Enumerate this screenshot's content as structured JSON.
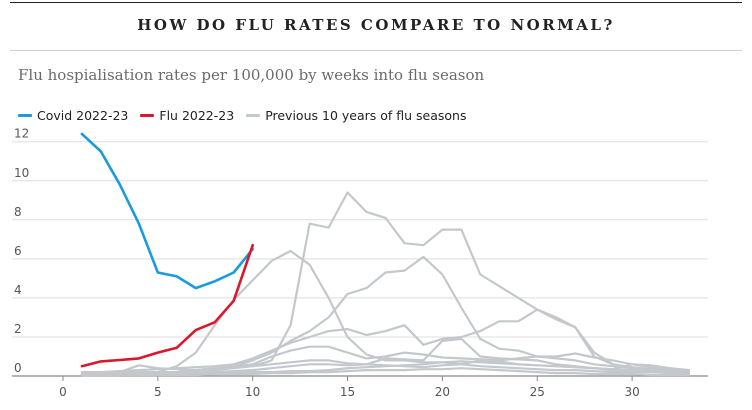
{
  "header": {
    "title": "HOW DO FLU RATES COMPARE TO NORMAL?",
    "subtitle": "Flu hospialisation rates per 100,000 by weeks into flu season"
  },
  "colors": {
    "covid": "#1a9be0",
    "flu": "#d9182d",
    "previous": "#c4c8cc",
    "grid": "#dddddd",
    "axis": "#888888"
  },
  "chart_data": {
    "type": "line",
    "title": "HOW DO FLU RATES COMPARE TO NORMAL?",
    "subtitle": "Flu hospialisation rates per 100,000 by weeks into flu season",
    "xlabel": "",
    "ylabel": "",
    "xlim": [
      -1,
      34
    ],
    "ylim": [
      0,
      12.6
    ],
    "xticks": [
      0,
      5,
      10,
      15,
      20,
      25,
      30
    ],
    "yticks": [
      0,
      2,
      4,
      6,
      8,
      10,
      12
    ],
    "grid": true,
    "legend_position": "top-left",
    "legend": [
      {
        "label": "Covid 2022-23",
        "series": "covid"
      },
      {
        "label": "Flu 2022-23",
        "series": "flu"
      },
      {
        "label": "Previous 10 years of flu seasons",
        "series": "previous"
      }
    ],
    "series": [
      {
        "name": "Covid 2022-23",
        "key": "covid",
        "x": [
          1,
          2,
          3,
          4,
          5,
          6,
          7,
          8,
          9,
          10
        ],
        "y": [
          12.4,
          11.5,
          9.8,
          7.8,
          5.3,
          5.1,
          4.5,
          4.85,
          5.3,
          6.5
        ]
      },
      {
        "name": "Flu 2022-23",
        "key": "flu",
        "x": [
          1,
          2,
          3,
          4,
          5,
          6,
          7,
          8,
          9,
          10
        ],
        "y": [
          0.5,
          0.75,
          0.82,
          0.9,
          1.2,
          1.45,
          2.35,
          2.75,
          3.85,
          6.7
        ]
      },
      {
        "name": "Previous 10 years of flu seasons",
        "key": "previous",
        "x": [
          1,
          2,
          3,
          4,
          5,
          6,
          7,
          8,
          9,
          10,
          11,
          12,
          13,
          14,
          15,
          16,
          17,
          18,
          19,
          20,
          21,
          22,
          23,
          24,
          25,
          26,
          27,
          28,
          29,
          30,
          31,
          32,
          33
        ],
        "y": [
          0.2,
          0.2,
          0.2,
          0.2,
          0.2,
          0.2,
          0.25,
          0.3,
          0.4,
          0.5,
          0.8,
          2.6,
          7.8,
          7.6,
          9.4,
          8.4,
          8.1,
          6.8,
          6.7,
          7.5,
          7.5,
          5.2,
          4.6,
          4.0,
          3.4,
          3.0,
          2.5,
          1.2,
          0.6,
          0.4,
          0.3,
          0.25,
          0.2
        ]
      },
      {
        "name": "Previous 10 years of flu seasons",
        "key": "previous",
        "x": [
          1,
          2,
          3,
          4,
          5,
          6,
          7,
          8,
          9,
          10,
          11,
          12,
          13,
          14,
          15,
          16,
          17,
          18,
          19,
          20,
          21,
          22,
          23,
          24,
          25,
          26,
          27,
          28,
          29,
          30,
          31,
          32,
          33
        ],
        "y": [
          0.1,
          0.1,
          0.1,
          0.15,
          0.2,
          0.5,
          1.2,
          2.6,
          3.9,
          4.9,
          5.9,
          6.4,
          5.7,
          4.0,
          2.0,
          1.1,
          0.8,
          0.8,
          0.7,
          0.7,
          0.6,
          0.5,
          0.45,
          0.4,
          0.35,
          0.3,
          0.3,
          0.25,
          0.2,
          0.2,
          0.2,
          0.15,
          0.15
        ]
      },
      {
        "name": "Previous 10 years of flu seasons",
        "key": "previous",
        "x": [
          1,
          2,
          3,
          4,
          5,
          6,
          7,
          8,
          9,
          10,
          11,
          12,
          13,
          14,
          15,
          16,
          17,
          18,
          19,
          20,
          21,
          22,
          23,
          24,
          25,
          26,
          27,
          28,
          29,
          30,
          31,
          32,
          33
        ],
        "y": [
          0.1,
          0.1,
          0.1,
          0.1,
          0.15,
          0.2,
          0.3,
          0.4,
          0.5,
          0.8,
          1.2,
          1.8,
          2.3,
          3.0,
          4.2,
          4.5,
          5.3,
          5.4,
          6.1,
          5.2,
          3.5,
          1.9,
          1.4,
          1.3,
          1.0,
          0.9,
          0.8,
          0.6,
          0.5,
          0.4,
          0.35,
          0.3,
          0.25
        ]
      },
      {
        "name": "Previous 10 years of flu seasons",
        "key": "previous",
        "x": [
          1,
          2,
          3,
          4,
          5,
          6,
          7,
          8,
          9,
          10,
          11,
          12,
          13,
          14,
          15,
          16,
          17,
          18,
          19,
          20,
          21,
          22,
          23,
          24,
          25,
          26,
          27,
          28,
          29,
          30,
          31,
          32,
          33
        ],
        "y": [
          0.2,
          0.2,
          0.25,
          0.3,
          0.35,
          0.4,
          0.45,
          0.5,
          0.6,
          0.9,
          1.3,
          1.7,
          2.0,
          2.3,
          2.4,
          2.1,
          2.3,
          2.6,
          1.6,
          1.9,
          2.0,
          2.3,
          2.8,
          2.8,
          3.4,
          2.9,
          2.5,
          1.0,
          0.6,
          0.45,
          0.35,
          0.3,
          0.25
        ]
      },
      {
        "name": "Previous 10 years of flu seasons",
        "key": "previous",
        "x": [
          1,
          2,
          3,
          4,
          5,
          6,
          7,
          8,
          9,
          10,
          11,
          12,
          13,
          14,
          15,
          16,
          17,
          18,
          19,
          20,
          21,
          22,
          23,
          24,
          25,
          26,
          27,
          28,
          29,
          30,
          31,
          32,
          33
        ],
        "y": [
          0.15,
          0.15,
          0.2,
          0.55,
          0.4,
          0.35,
          0.3,
          0.35,
          0.5,
          0.6,
          1.0,
          1.3,
          1.5,
          1.5,
          1.2,
          0.9,
          1.0,
          1.2,
          1.1,
          0.95,
          0.9,
          0.85,
          0.8,
          0.9,
          1.0,
          1.0,
          1.15,
          0.95,
          0.8,
          0.6,
          0.45,
          0.35,
          0.3
        ]
      },
      {
        "name": "Previous 10 years of flu seasons",
        "key": "previous",
        "x": [
          1,
          2,
          3,
          4,
          5,
          6,
          7,
          8,
          9,
          10,
          11,
          12,
          13,
          14,
          15,
          16,
          17,
          18,
          19,
          20,
          21,
          22,
          23,
          24,
          25,
          26,
          27,
          28,
          29,
          30,
          31,
          32,
          33
        ],
        "y": [
          0.05,
          0.05,
          0.05,
          0.1,
          0.1,
          0.1,
          0.15,
          0.2,
          0.25,
          0.3,
          0.4,
          0.5,
          0.6,
          0.6,
          0.55,
          0.6,
          0.9,
          0.85,
          0.8,
          1.8,
          1.9,
          1.0,
          0.9,
          0.85,
          0.8,
          0.6,
          0.5,
          0.4,
          0.3,
          0.25,
          0.2,
          0.2,
          0.15
        ]
      },
      {
        "name": "Previous 10 years of flu seasons",
        "key": "previous",
        "x": [
          1,
          2,
          3,
          4,
          5,
          6,
          7,
          8,
          9,
          10,
          11,
          12,
          13,
          14,
          15,
          16,
          17,
          18,
          19,
          20,
          21,
          22,
          23,
          24,
          25,
          26,
          27,
          28,
          29,
          30,
          31,
          32,
          33
        ],
        "y": [
          0.1,
          0.1,
          0.1,
          0.1,
          0.15,
          0.2,
          0.3,
          0.4,
          0.45,
          0.5,
          0.6,
          0.7,
          0.8,
          0.8,
          0.65,
          0.6,
          0.55,
          0.5,
          0.45,
          0.55,
          0.6,
          0.8,
          0.75,
          0.6,
          0.55,
          0.5,
          0.45,
          0.4,
          0.35,
          0.3,
          0.25,
          0.2,
          0.2
        ]
      },
      {
        "name": "Previous 10 years of flu seasons",
        "key": "previous",
        "x": [
          1,
          2,
          3,
          4,
          5,
          6,
          7,
          8,
          9,
          10,
          11,
          12,
          13,
          14,
          15,
          16,
          17,
          18,
          19,
          20,
          21,
          22,
          23,
          24,
          25,
          26,
          27,
          28,
          29,
          30,
          31,
          32,
          33
        ],
        "y": [
          0.05,
          0.05,
          0.05,
          0.05,
          0.05,
          0.1,
          0.1,
          0.1,
          0.15,
          0.2,
          0.2,
          0.25,
          0.25,
          0.3,
          0.4,
          0.45,
          0.5,
          0.55,
          0.6,
          0.7,
          0.75,
          0.7,
          0.65,
          0.6,
          0.55,
          0.5,
          0.45,
          0.4,
          0.35,
          0.6,
          0.55,
          0.4,
          0.3
        ]
      },
      {
        "name": "Previous 10 years of flu seasons",
        "key": "previous",
        "x": [
          1,
          2,
          3,
          4,
          5,
          6,
          7,
          8,
          9,
          10,
          11,
          12,
          13,
          14,
          15,
          16,
          17,
          18,
          19,
          20,
          21,
          22,
          23,
          24,
          25,
          26,
          27,
          28,
          29,
          30,
          31,
          32,
          33
        ],
        "y": [
          0.05,
          0.05,
          0.05,
          0.05,
          0.05,
          0.05,
          0.05,
          0.1,
          0.1,
          0.1,
          0.15,
          0.15,
          0.2,
          0.2,
          0.25,
          0.3,
          0.3,
          0.3,
          0.35,
          0.35,
          0.4,
          0.35,
          0.3,
          0.25,
          0.2,
          0.15,
          0.15,
          0.1,
          0.1,
          0.1,
          0.05,
          0.05,
          0.05
        ]
      }
    ]
  }
}
